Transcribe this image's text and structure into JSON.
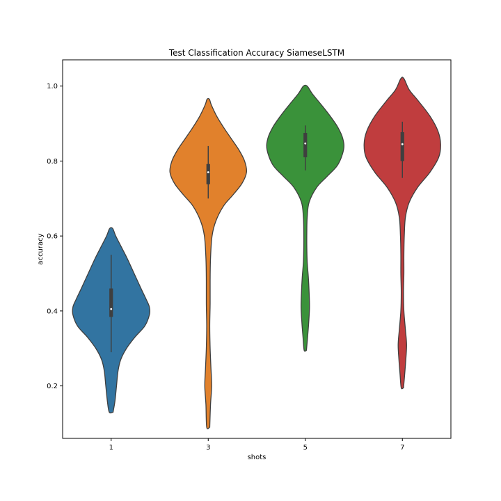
{
  "chart_data": {
    "type": "violin",
    "title": "Test Classification Accuracy SiameseLSTM",
    "xlabel": "shots",
    "ylabel": "accuracy",
    "categories": [
      "1",
      "3",
      "5",
      "7"
    ],
    "ylim": [
      0.06,
      1.07
    ],
    "yticks": [
      0.2,
      0.4,
      0.6,
      0.8,
      1.0
    ],
    "ytick_labels": [
      "0.2",
      "0.4",
      "0.6",
      "0.8",
      "1.0"
    ],
    "grid": false,
    "series": [
      {
        "category": "1",
        "color": "#3274a1",
        "min": 0.29,
        "q1": 0.384,
        "median": 0.405,
        "q3": 0.46,
        "max": 0.55,
        "kde_min": 0.13,
        "kde_max": 0.62,
        "profile": [
          [
            0.13,
            0.05
          ],
          [
            0.16,
            0.1
          ],
          [
            0.2,
            0.14
          ],
          [
            0.24,
            0.18
          ],
          [
            0.27,
            0.25
          ],
          [
            0.3,
            0.4
          ],
          [
            0.33,
            0.62
          ],
          [
            0.36,
            0.88
          ],
          [
            0.39,
            1.0
          ],
          [
            0.41,
            1.0
          ],
          [
            0.43,
            0.92
          ],
          [
            0.46,
            0.78
          ],
          [
            0.5,
            0.6
          ],
          [
            0.54,
            0.42
          ],
          [
            0.57,
            0.27
          ],
          [
            0.6,
            0.12
          ],
          [
            0.62,
            0.04
          ]
        ]
      },
      {
        "category": "3",
        "color": "#e1812c",
        "min": 0.7,
        "q1": 0.738,
        "median": 0.77,
        "q3": 0.792,
        "max": 0.84,
        "kde_min": 0.09,
        "kde_max": 0.965,
        "profile": [
          [
            0.09,
            0.04
          ],
          [
            0.15,
            0.06
          ],
          [
            0.2,
            0.09
          ],
          [
            0.25,
            0.07
          ],
          [
            0.3,
            0.05
          ],
          [
            0.36,
            0.04
          ],
          [
            0.42,
            0.05
          ],
          [
            0.48,
            0.05
          ],
          [
            0.54,
            0.06
          ],
          [
            0.6,
            0.1
          ],
          [
            0.64,
            0.2
          ],
          [
            0.68,
            0.4
          ],
          [
            0.71,
            0.65
          ],
          [
            0.74,
            0.88
          ],
          [
            0.77,
            1.0
          ],
          [
            0.8,
            0.95
          ],
          [
            0.83,
            0.8
          ],
          [
            0.86,
            0.6
          ],
          [
            0.89,
            0.4
          ],
          [
            0.92,
            0.22
          ],
          [
            0.95,
            0.08
          ],
          [
            0.965,
            0.03
          ]
        ]
      },
      {
        "category": "5",
        "color": "#3a923a",
        "min": 0.775,
        "q1": 0.81,
        "median": 0.847,
        "q3": 0.875,
        "max": 0.895,
        "kde_min": 0.295,
        "kde_max": 1.0,
        "profile": [
          [
            0.295,
            0.03
          ],
          [
            0.33,
            0.06
          ],
          [
            0.37,
            0.09
          ],
          [
            0.41,
            0.11
          ],
          [
            0.45,
            0.1
          ],
          [
            0.49,
            0.08
          ],
          [
            0.53,
            0.05
          ],
          [
            0.57,
            0.04
          ],
          [
            0.61,
            0.04
          ],
          [
            0.65,
            0.05
          ],
          [
            0.69,
            0.1
          ],
          [
            0.73,
            0.3
          ],
          [
            0.76,
            0.58
          ],
          [
            0.79,
            0.85
          ],
          [
            0.83,
            1.0
          ],
          [
            0.86,
            0.98
          ],
          [
            0.89,
            0.85
          ],
          [
            0.92,
            0.65
          ],
          [
            0.95,
            0.42
          ],
          [
            0.98,
            0.18
          ],
          [
            1.0,
            0.05
          ]
        ]
      },
      {
        "category": "7",
        "color": "#c03d3e",
        "min": 0.755,
        "q1": 0.8,
        "median": 0.845,
        "q3": 0.877,
        "max": 0.905,
        "kde_min": 0.195,
        "kde_max": 1.02,
        "profile": [
          [
            0.195,
            0.03
          ],
          [
            0.23,
            0.06
          ],
          [
            0.27,
            0.09
          ],
          [
            0.31,
            0.11
          ],
          [
            0.35,
            0.08
          ],
          [
            0.4,
            0.04
          ],
          [
            0.45,
            0.03
          ],
          [
            0.5,
            0.04
          ],
          [
            0.55,
            0.04
          ],
          [
            0.6,
            0.05
          ],
          [
            0.65,
            0.08
          ],
          [
            0.69,
            0.18
          ],
          [
            0.73,
            0.4
          ],
          [
            0.77,
            0.72
          ],
          [
            0.81,
            0.95
          ],
          [
            0.845,
            1.0
          ],
          [
            0.88,
            0.93
          ],
          [
            0.92,
            0.72
          ],
          [
            0.96,
            0.42
          ],
          [
            0.99,
            0.18
          ],
          [
            1.02,
            0.04
          ]
        ]
      }
    ]
  }
}
